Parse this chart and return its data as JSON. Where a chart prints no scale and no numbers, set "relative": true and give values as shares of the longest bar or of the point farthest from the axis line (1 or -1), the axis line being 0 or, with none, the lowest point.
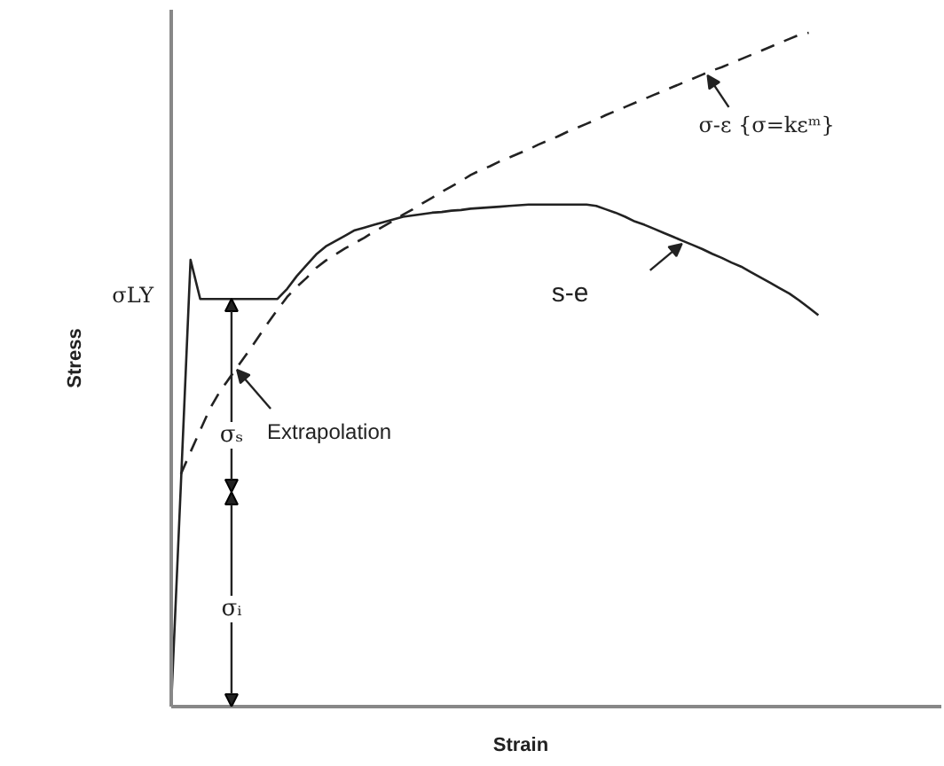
{
  "chart_data": {
    "type": "line",
    "relative": true,
    "xlabel": "Strain",
    "ylabel": "Stress",
    "marker": "none",
    "categories": [
      null,
      null,
      null,
      null,
      null,
      null,
      null,
      null,
      null,
      null,
      null,
      null,
      null,
      null,
      null,
      null,
      null,
      null,
      null,
      null,
      null,
      null,
      null,
      null,
      null,
      null,
      null,
      null,
      null,
      null,
      null,
      null,
      null,
      null,
      null,
      null,
      null,
      null,
      null,
      null,
      null,
      null,
      null,
      null,
      null,
      null,
      null,
      null,
      null,
      null,
      null,
      null,
      null,
      null,
      null,
      null,
      null,
      null,
      null,
      null,
      null,
      null,
      null,
      null,
      null,
      null,
      null,
      null
    ],
    "series": [
      {
        "line_style": "solid",
        "color": "#222222",
        "values": [
          0.003,
          0.33,
          0.663,
          0.605,
          0.605,
          0.605,
          0.605,
          0.605,
          0.605,
          0.605,
          0.605,
          0.605,
          0.62,
          0.639,
          0.655,
          0.671,
          0.683,
          0.691,
          0.699,
          0.707,
          0.711,
          0.715,
          0.719,
          0.723,
          0.727,
          0.729,
          0.731,
          0.733,
          0.734,
          0.736,
          0.737,
          0.739,
          0.74,
          0.741,
          0.742,
          0.743,
          0.744,
          0.745,
          0.745,
          0.745,
          0.745,
          0.745,
          0.745,
          0.745,
          0.743,
          0.738,
          0.733,
          0.727,
          0.72,
          0.715,
          0.709,
          0.703,
          0.697,
          0.691,
          0.685,
          0.679,
          0.672,
          0.666,
          0.659,
          0.653,
          0.645,
          0.637,
          0.629,
          0.621,
          0.613,
          0.603,
          0.592,
          0.581
        ]
      },
      {
        "line_style": "dashed",
        "color": "#222222",
        "values": [
          null,
          0.345,
          0.378,
          0.41,
          0.442,
          0.467,
          0.487,
          0.507,
          0.527,
          0.548,
          0.569,
          0.589,
          0.608,
          0.623,
          0.636,
          0.651,
          0.662,
          0.671,
          0.68,
          0.688,
          0.696,
          0.705,
          0.713,
          0.721,
          0.73,
          0.738,
          0.747,
          0.755,
          0.764,
          0.772,
          0.78,
          0.789,
          0.796,
          0.802,
          0.809,
          0.815,
          0.821,
          0.827,
          0.834,
          0.84,
          0.846,
          0.853,
          0.859,
          0.865,
          0.871,
          0.878,
          0.884,
          0.89,
          0.896,
          0.902,
          0.908,
          0.914,
          0.92,
          0.926,
          0.932,
          0.938,
          0.944,
          0.949,
          0.955,
          0.961,
          0.967,
          0.973,
          0.979,
          0.985,
          0.991,
          0.997,
          1.0,
          null
        ]
      }
    ],
    "annotations": [
      "σLY",
      "Extrapolation",
      "s-e",
      "σ-ε {σ=kεᵐ}",
      "σₛ",
      "σᵢ"
    ]
  }
}
